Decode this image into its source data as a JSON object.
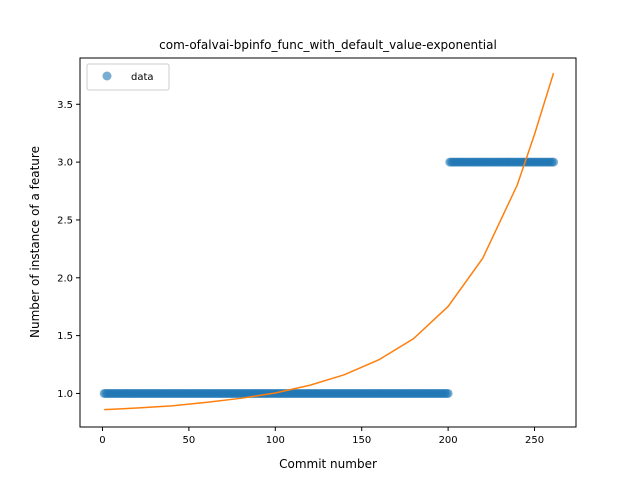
{
  "chart_data": {
    "type": "scatter",
    "title": "com-ofalvai-bpinfo_func_with_default_value-exponential",
    "xlabel": "Commit number",
    "ylabel": "Number of instance of a feature",
    "xlim": [
      -13,
      274
    ],
    "ylim": [
      0.71,
      3.9
    ],
    "x_ticks": [
      0,
      50,
      100,
      150,
      200,
      250
    ],
    "y_ticks": [
      1.0,
      1.5,
      2.0,
      2.5,
      3.0,
      3.5
    ],
    "x_tick_labels": [
      "0",
      "50",
      "100",
      "150",
      "200",
      "250"
    ],
    "y_tick_labels": [
      "1.0",
      "1.5",
      "2.0",
      "2.5",
      "3.0",
      "3.5"
    ],
    "legend": {
      "position": "top-left",
      "entries": [
        {
          "label": "data",
          "marker": "circle",
          "color": "#1f77b4"
        }
      ]
    },
    "grid": false,
    "series": [
      {
        "name": "data",
        "kind": "points",
        "color": "#1f77b4",
        "segments": [
          {
            "x_start": 1,
            "x_end": 200,
            "y": 1.0
          },
          {
            "x_start": 201,
            "x_end": 261,
            "y": 3.0
          }
        ]
      },
      {
        "kind": "fit-curve",
        "color": "#ff7f0e",
        "points": [
          [
            1,
            0.86
          ],
          [
            20,
            0.874
          ],
          [
            40,
            0.893
          ],
          [
            60,
            0.923
          ],
          [
            80,
            0.958
          ],
          [
            100,
            1.004
          ],
          [
            120,
            1.071
          ],
          [
            140,
            1.162
          ],
          [
            160,
            1.292
          ],
          [
            180,
            1.474
          ],
          [
            200,
            1.752
          ],
          [
            220,
            2.168
          ],
          [
            240,
            2.802
          ],
          [
            250,
            3.24
          ],
          [
            261,
            3.77
          ]
        ]
      }
    ]
  }
}
